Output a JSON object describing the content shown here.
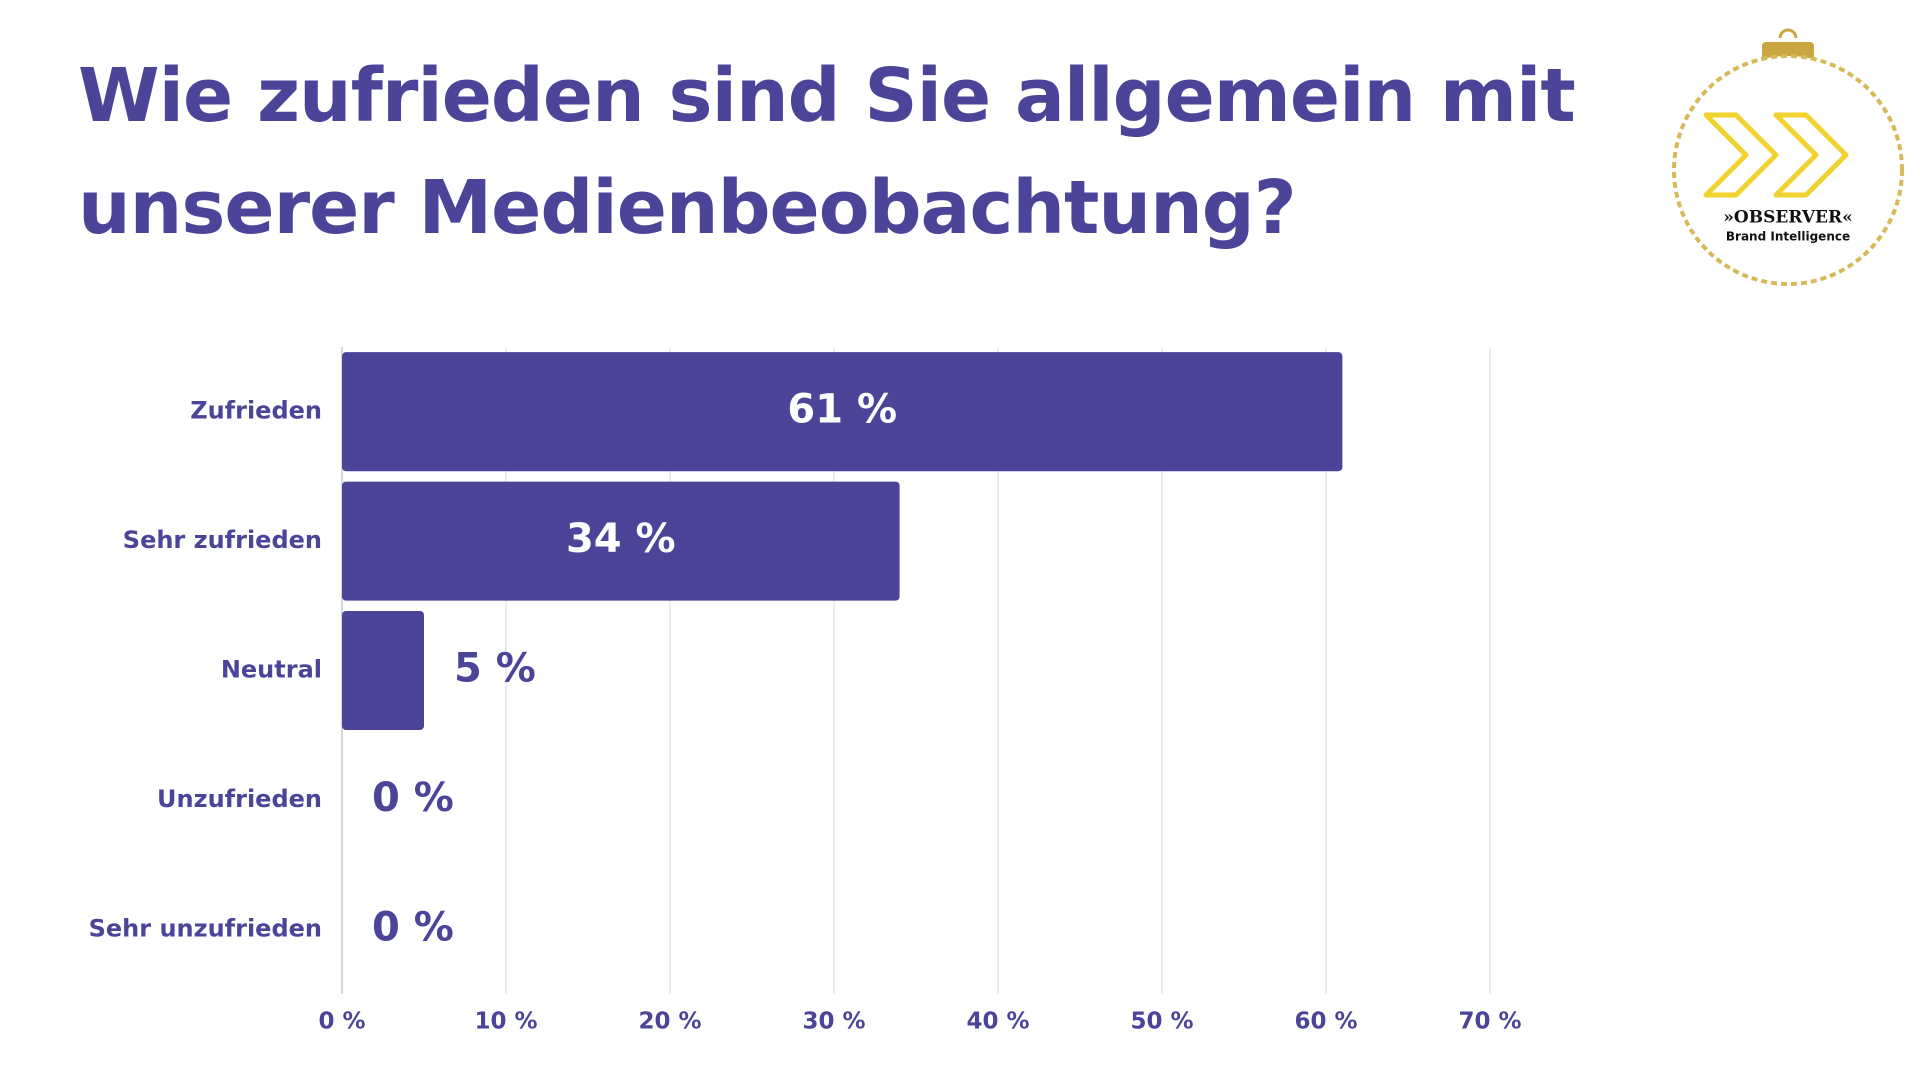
{
  "chart_data": {
    "type": "bar",
    "orientation": "horizontal",
    "title": "Wie zufrieden sind Sie allgemein mit unserer Medienbeobachtung?",
    "categories": [
      "Zufrieden",
      "Sehr zufrieden",
      "Neutral",
      "Unzufrieden",
      "Sehr unzufrieden"
    ],
    "values": [
      61,
      34,
      5,
      0,
      0
    ],
    "value_labels": [
      "61 %",
      "34 %",
      "5 %",
      "0 %",
      "0 %"
    ],
    "color": "#4b4499",
    "xlim": [
      0,
      70
    ],
    "xticks": [
      {
        "value": 0,
        "label": "0 %"
      },
      {
        "value": 10,
        "label": "10 %"
      },
      {
        "value": 20,
        "label": "20 %"
      },
      {
        "value": 30,
        "label": "30 %"
      },
      {
        "value": 40,
        "label": "40 %"
      },
      {
        "value": 50,
        "label": "50 %"
      },
      {
        "value": 60,
        "label": "60 %"
      },
      {
        "value": 70,
        "label": "70 %"
      }
    ],
    "grid": true
  },
  "logo": {
    "name": "»OBSERVER«",
    "tagline": "Brand Intelligence"
  }
}
